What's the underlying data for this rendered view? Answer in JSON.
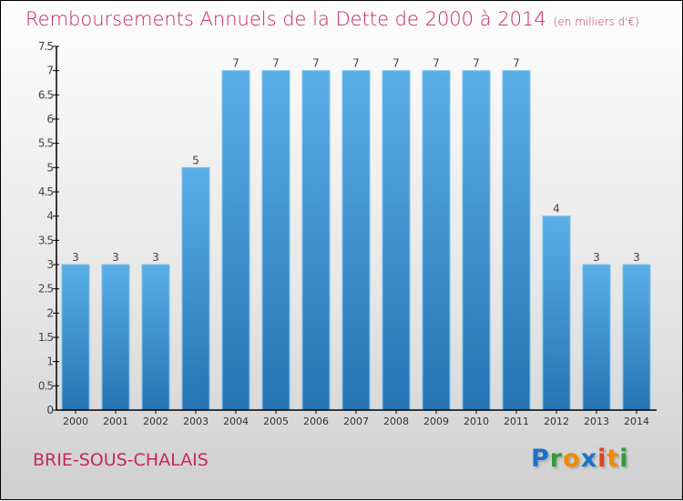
{
  "title": "Remboursements Annuels de la Dette de 2000 à 2014",
  "subtitle": "(en milliers d'€)",
  "city": "BRIE-SOUS-CHALAIS",
  "logo": {
    "letters": [
      "P",
      "r",
      "o",
      "x",
      "i",
      "t",
      "i"
    ],
    "colors": [
      "#1a73c9",
      "#2e9b3a",
      "#f08a00",
      "#1a73c9",
      "#e8411c",
      "#f08a00",
      "#2e9b3a"
    ]
  },
  "chart_data": {
    "type": "bar",
    "title": "Remboursements Annuels de la Dette de 2000 à 2014",
    "ylabel": "en milliers d'€",
    "categories": [
      "2000",
      "2001",
      "2002",
      "2003",
      "2004",
      "2005",
      "2006",
      "2007",
      "2008",
      "2009",
      "2010",
      "2011",
      "2012",
      "2013",
      "2014"
    ],
    "values": [
      3,
      3,
      3,
      5,
      7,
      7,
      7,
      7,
      7,
      7,
      7,
      7,
      4,
      3,
      3
    ],
    "ylim": [
      0,
      7.5
    ],
    "yticks": [
      "0",
      "0.5",
      "1",
      "1.5",
      "2",
      "2.5",
      "3",
      "3.5",
      "4",
      "4.5",
      "5",
      "5.5",
      "6",
      "6.5",
      "7",
      "7.5"
    ],
    "bar_color": "#4a9fdc"
  }
}
